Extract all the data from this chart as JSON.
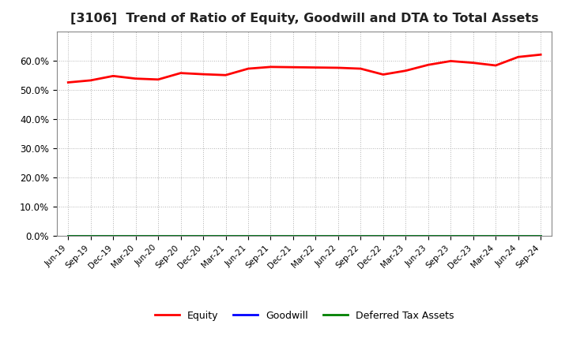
{
  "title": "[3106]  Trend of Ratio of Equity, Goodwill and DTA to Total Assets",
  "x_labels": [
    "Jun-19",
    "Sep-19",
    "Dec-19",
    "Mar-20",
    "Jun-20",
    "Sep-20",
    "Dec-20",
    "Mar-21",
    "Jun-21",
    "Sep-21",
    "Dec-21",
    "Mar-22",
    "Jun-22",
    "Sep-22",
    "Dec-22",
    "Mar-23",
    "Jun-23",
    "Sep-23",
    "Dec-23",
    "Mar-24",
    "Jun-24",
    "Sep-24"
  ],
  "equity": [
    52.5,
    53.2,
    54.7,
    53.8,
    53.5,
    55.7,
    55.3,
    55.0,
    57.2,
    57.8,
    57.7,
    57.6,
    57.5,
    57.2,
    55.2,
    56.5,
    58.5,
    59.8,
    59.2,
    58.3,
    61.2,
    62.0
  ],
  "goodwill": [
    0.0,
    0.0,
    0.0,
    0.0,
    0.0,
    0.0,
    0.0,
    0.0,
    0.0,
    0.0,
    0.0,
    0.0,
    0.0,
    0.0,
    0.0,
    0.0,
    0.0,
    0.0,
    0.0,
    0.0,
    0.0,
    0.0
  ],
  "dta": [
    0.0,
    0.0,
    0.0,
    0.0,
    0.0,
    0.0,
    0.0,
    0.0,
    0.0,
    0.0,
    0.0,
    0.0,
    0.0,
    0.0,
    0.0,
    0.0,
    0.0,
    0.0,
    0.0,
    0.0,
    0.0,
    0.0
  ],
  "equity_color": "#ff0000",
  "goodwill_color": "#0000ff",
  "dta_color": "#008000",
  "ylim": [
    0.0,
    70.0
  ],
  "yticks": [
    0.0,
    10.0,
    20.0,
    30.0,
    40.0,
    50.0,
    60.0
  ],
  "background_color": "#ffffff",
  "grid_color": "#aaaaaa",
  "title_fontsize": 11.5,
  "legend_labels": [
    "Equity",
    "Goodwill",
    "Deferred Tax Assets"
  ]
}
